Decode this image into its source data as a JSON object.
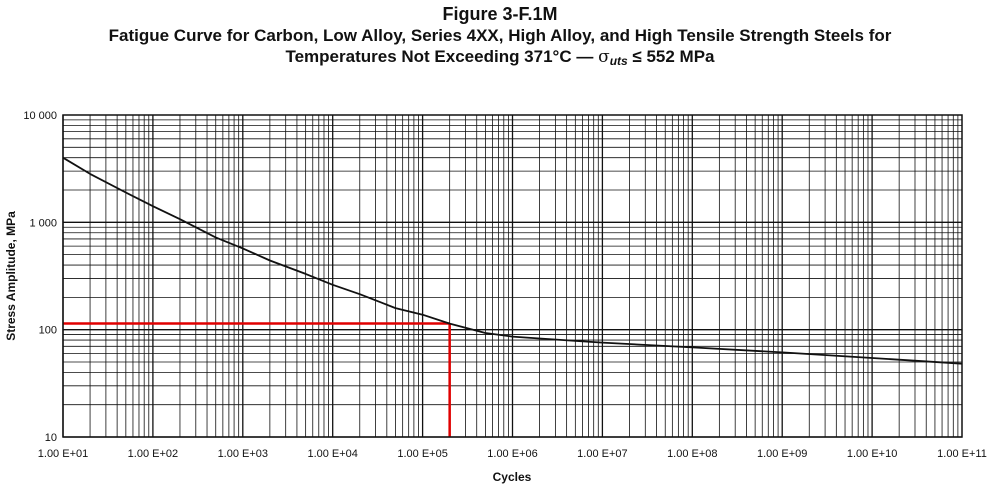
{
  "chart_data": {
    "type": "line",
    "figure_label": "Figure 3-F.1M",
    "title_line1": "Fatigue Curve for Carbon, Low Alloy, Series 4XX, High Alloy, and High Tensile Strength Steels for",
    "title_line2_prefix": "Temperatures Not Exceeding 371°C — ",
    "title_sigma": "σ",
    "title_sub": "uts",
    "title_line2_suffix": " ≤ 552 MPa",
    "xlabel": "Cycles",
    "ylabel": "Stress Amplitude, MPa",
    "x_scale": "log",
    "y_scale": "log",
    "xlim": [
      10,
      100000000000
    ],
    "ylim": [
      10,
      10000
    ],
    "grid": true,
    "x_ticks": [
      10,
      100,
      1000,
      10000,
      100000,
      1000000,
      10000000,
      100000000,
      1000000000,
      10000000000,
      100000000000
    ],
    "x_tick_labels": [
      "1.00 E+01",
      "1.00 E+02",
      "1.00 E+03",
      "1.00 E+04",
      "1.00 E+05",
      "1.00 E+06",
      "1.00 E+07",
      "1.00 E+08",
      "1.00 E+09",
      "1.00 E+10",
      "1.00 E+11"
    ],
    "y_ticks": [
      10,
      100,
      1000,
      10000
    ],
    "y_tick_labels": [
      "10",
      "100",
      "1 000",
      "10 000"
    ],
    "series": [
      {
        "color": "#111111",
        "x": [
          10,
          20,
          50,
          100,
          200,
          500,
          1000,
          2000,
          5000,
          10000,
          20000,
          50000,
          100000,
          200000,
          500000,
          1000000,
          2000000,
          5000000,
          10000000,
          100000000,
          1000000000,
          10000000000,
          100000000000
        ],
        "y": [
          3999,
          2827,
          1896,
          1413,
          1069,
          724,
          572,
          441,
          331,
          262,
          214,
          159,
          138,
          114,
          93.1,
          86.2,
          82.7,
          78.6,
          75.8,
          68.3,
          61.4,
          54.4,
          48.2
        ]
      }
    ],
    "annotation": {
      "color": "#e00000",
      "x": 200000,
      "y": 114
    }
  }
}
